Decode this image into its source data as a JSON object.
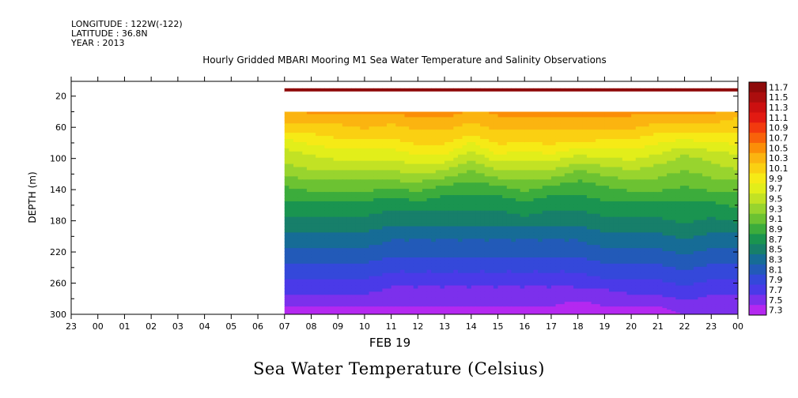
{
  "header": {
    "longitude": "LONGITUDE : 122W(-122)",
    "latitude": "LATITUDE : 36.8N",
    "year": "YEAR : 2013"
  },
  "caption": "Sea Water Temperature (Celsius)",
  "chart_data": {
    "type": "heatmap",
    "title": "Hourly Gridded MBARI Mooring M1 Sea Water Temperature and Salinity Observations",
    "xlabel": "FEB 19",
    "ylabel": "DEPTH (m)",
    "x_ticks": [
      "23",
      "00",
      "01",
      "02",
      "03",
      "04",
      "05",
      "06",
      "07",
      "08",
      "09",
      "10",
      "11",
      "12",
      "13",
      "14",
      "15",
      "16",
      "17",
      "18",
      "19",
      "20",
      "21",
      "22",
      "23",
      "00"
    ],
    "y_ticks": [
      "20",
      "60",
      "100",
      "140",
      "180",
      "220",
      "260",
      "300"
    ],
    "ylim": [
      300,
      0
    ],
    "y_range_top": 1,
    "data_start_hour_index": 8,
    "colorbar": {
      "levels": [
        "11.7",
        "11.5",
        "11.3",
        "11.1",
        "10.9",
        "10.7",
        "10.5",
        "10.3",
        "10.1",
        "9.9",
        "9.7",
        "9.5",
        "9.3",
        "9.1",
        "8.9",
        "8.7",
        "8.5",
        "8.3",
        "8.1",
        "7.9",
        "7.7",
        "7.5",
        "7.3"
      ],
      "colors": [
        "#8e0a0a",
        "#ac0e0e",
        "#cc1010",
        "#e21a12",
        "#f23a0e",
        "#f8620a",
        "#fb8e08",
        "#fbb410",
        "#fad012",
        "#f6ea16",
        "#e2ee1a",
        "#c2e224",
        "#98d42e",
        "#6cc232",
        "#3cac3c",
        "#1a9450",
        "#177f6a",
        "#166c96",
        "#225ab8",
        "#3448da",
        "#4a3ae8",
        "#7c30ec",
        "#b428f0"
      ]
    },
    "depth_levels": [
      10,
      35,
      55,
      75,
      95,
      115,
      135,
      155,
      175,
      195,
      215,
      235,
      255,
      275,
      290,
      300
    ],
    "hours": [
      7,
      8,
      9,
      10,
      11,
      12,
      13,
      14,
      15,
      16,
      17,
      18,
      19,
      20,
      21,
      22,
      23,
      24
    ],
    "temperature": [
      [
        11.6,
        11.6,
        11.6,
        11.6,
        11.6,
        11.6,
        11.6,
        11.6,
        11.6,
        11.6,
        11.6,
        11.6,
        11.6,
        11.6,
        11.6,
        11.6,
        11.6,
        11.6
      ],
      [
        10.4,
        10.5,
        10.5,
        10.5,
        10.5,
        10.6,
        10.6,
        10.4,
        10.5,
        10.5,
        10.6,
        10.6,
        10.6,
        10.5,
        10.5,
        10.5,
        10.5,
        10.4
      ],
      [
        10.2,
        10.2,
        10.2,
        10.3,
        10.2,
        10.3,
        10.3,
        10.2,
        10.3,
        10.3,
        10.3,
        10.3,
        10.3,
        10.3,
        10.2,
        10.2,
        10.2,
        10.1
      ],
      [
        9.8,
        9.9,
        10.0,
        10.0,
        10.0,
        10.1,
        10.1,
        9.9,
        10.1,
        10.1,
        10.1,
        10.1,
        10.0,
        10.0,
        9.9,
        9.8,
        9.9,
        9.9
      ],
      [
        9.5,
        9.6,
        9.7,
        9.7,
        9.7,
        9.8,
        9.8,
        9.5,
        9.8,
        9.7,
        9.8,
        9.6,
        9.7,
        9.7,
        9.6,
        9.4,
        9.5,
        9.6
      ],
      [
        9.3,
        9.4,
        9.4,
        9.4,
        9.4,
        9.5,
        9.4,
        9.2,
        9.4,
        9.4,
        9.4,
        9.2,
        9.3,
        9.4,
        9.3,
        9.2,
        9.3,
        9.4
      ],
      [
        9.0,
        9.1,
        9.1,
        9.1,
        9.1,
        9.1,
        9.0,
        8.9,
        9.0,
        9.1,
        9.0,
        8.9,
        9.0,
        9.1,
        9.1,
        9.0,
        9.1,
        9.1
      ],
      [
        8.8,
        8.8,
        8.8,
        8.8,
        8.7,
        8.8,
        8.7,
        8.7,
        8.7,
        8.8,
        8.7,
        8.7,
        8.8,
        8.8,
        8.8,
        8.8,
        8.8,
        8.9
      ],
      [
        8.6,
        8.6,
        8.6,
        8.6,
        8.5,
        8.5,
        8.5,
        8.5,
        8.5,
        8.6,
        8.5,
        8.5,
        8.6,
        8.6,
        8.6,
        8.7,
        8.6,
        8.7
      ],
      [
        8.4,
        8.4,
        8.4,
        8.4,
        8.3,
        8.3,
        8.3,
        8.3,
        8.3,
        8.3,
        8.3,
        8.3,
        8.4,
        8.4,
        8.4,
        8.5,
        8.4,
        8.4
      ],
      [
        8.2,
        8.2,
        8.2,
        8.2,
        8.1,
        8.1,
        8.1,
        8.1,
        8.1,
        8.1,
        8.1,
        8.1,
        8.2,
        8.2,
        8.2,
        8.3,
        8.2,
        8.2
      ],
      [
        8.0,
        8.0,
        8.0,
        8.0,
        7.9,
        7.9,
        7.9,
        7.9,
        7.9,
        7.9,
        7.9,
        7.9,
        8.0,
        8.0,
        8.0,
        8.1,
        8.0,
        8.0
      ],
      [
        7.8,
        7.8,
        7.8,
        7.8,
        7.7,
        7.7,
        7.7,
        7.7,
        7.7,
        7.7,
        7.7,
        7.7,
        7.8,
        7.8,
        7.8,
        7.9,
        7.8,
        7.8
      ],
      [
        7.6,
        7.6,
        7.6,
        7.6,
        7.5,
        7.5,
        7.5,
        7.5,
        7.5,
        7.5,
        7.5,
        7.5,
        7.5,
        7.6,
        7.6,
        7.7,
        7.6,
        7.6
      ],
      [
        7.4,
        7.4,
        7.4,
        7.4,
        7.4,
        7.4,
        7.4,
        7.4,
        7.4,
        7.4,
        7.4,
        7.3,
        7.4,
        7.4,
        7.4,
        7.5,
        7.5,
        7.5
      ],
      [
        7.3,
        7.3,
        7.3,
        7.3,
        7.3,
        7.3,
        7.3,
        7.3,
        7.3,
        7.3,
        7.3,
        7.3,
        7.3,
        7.3,
        7.3,
        7.4,
        7.4,
        7.4
      ]
    ],
    "gap_depth_range": [
      14,
      40
    ],
    "grid": false,
    "legend": "right"
  }
}
